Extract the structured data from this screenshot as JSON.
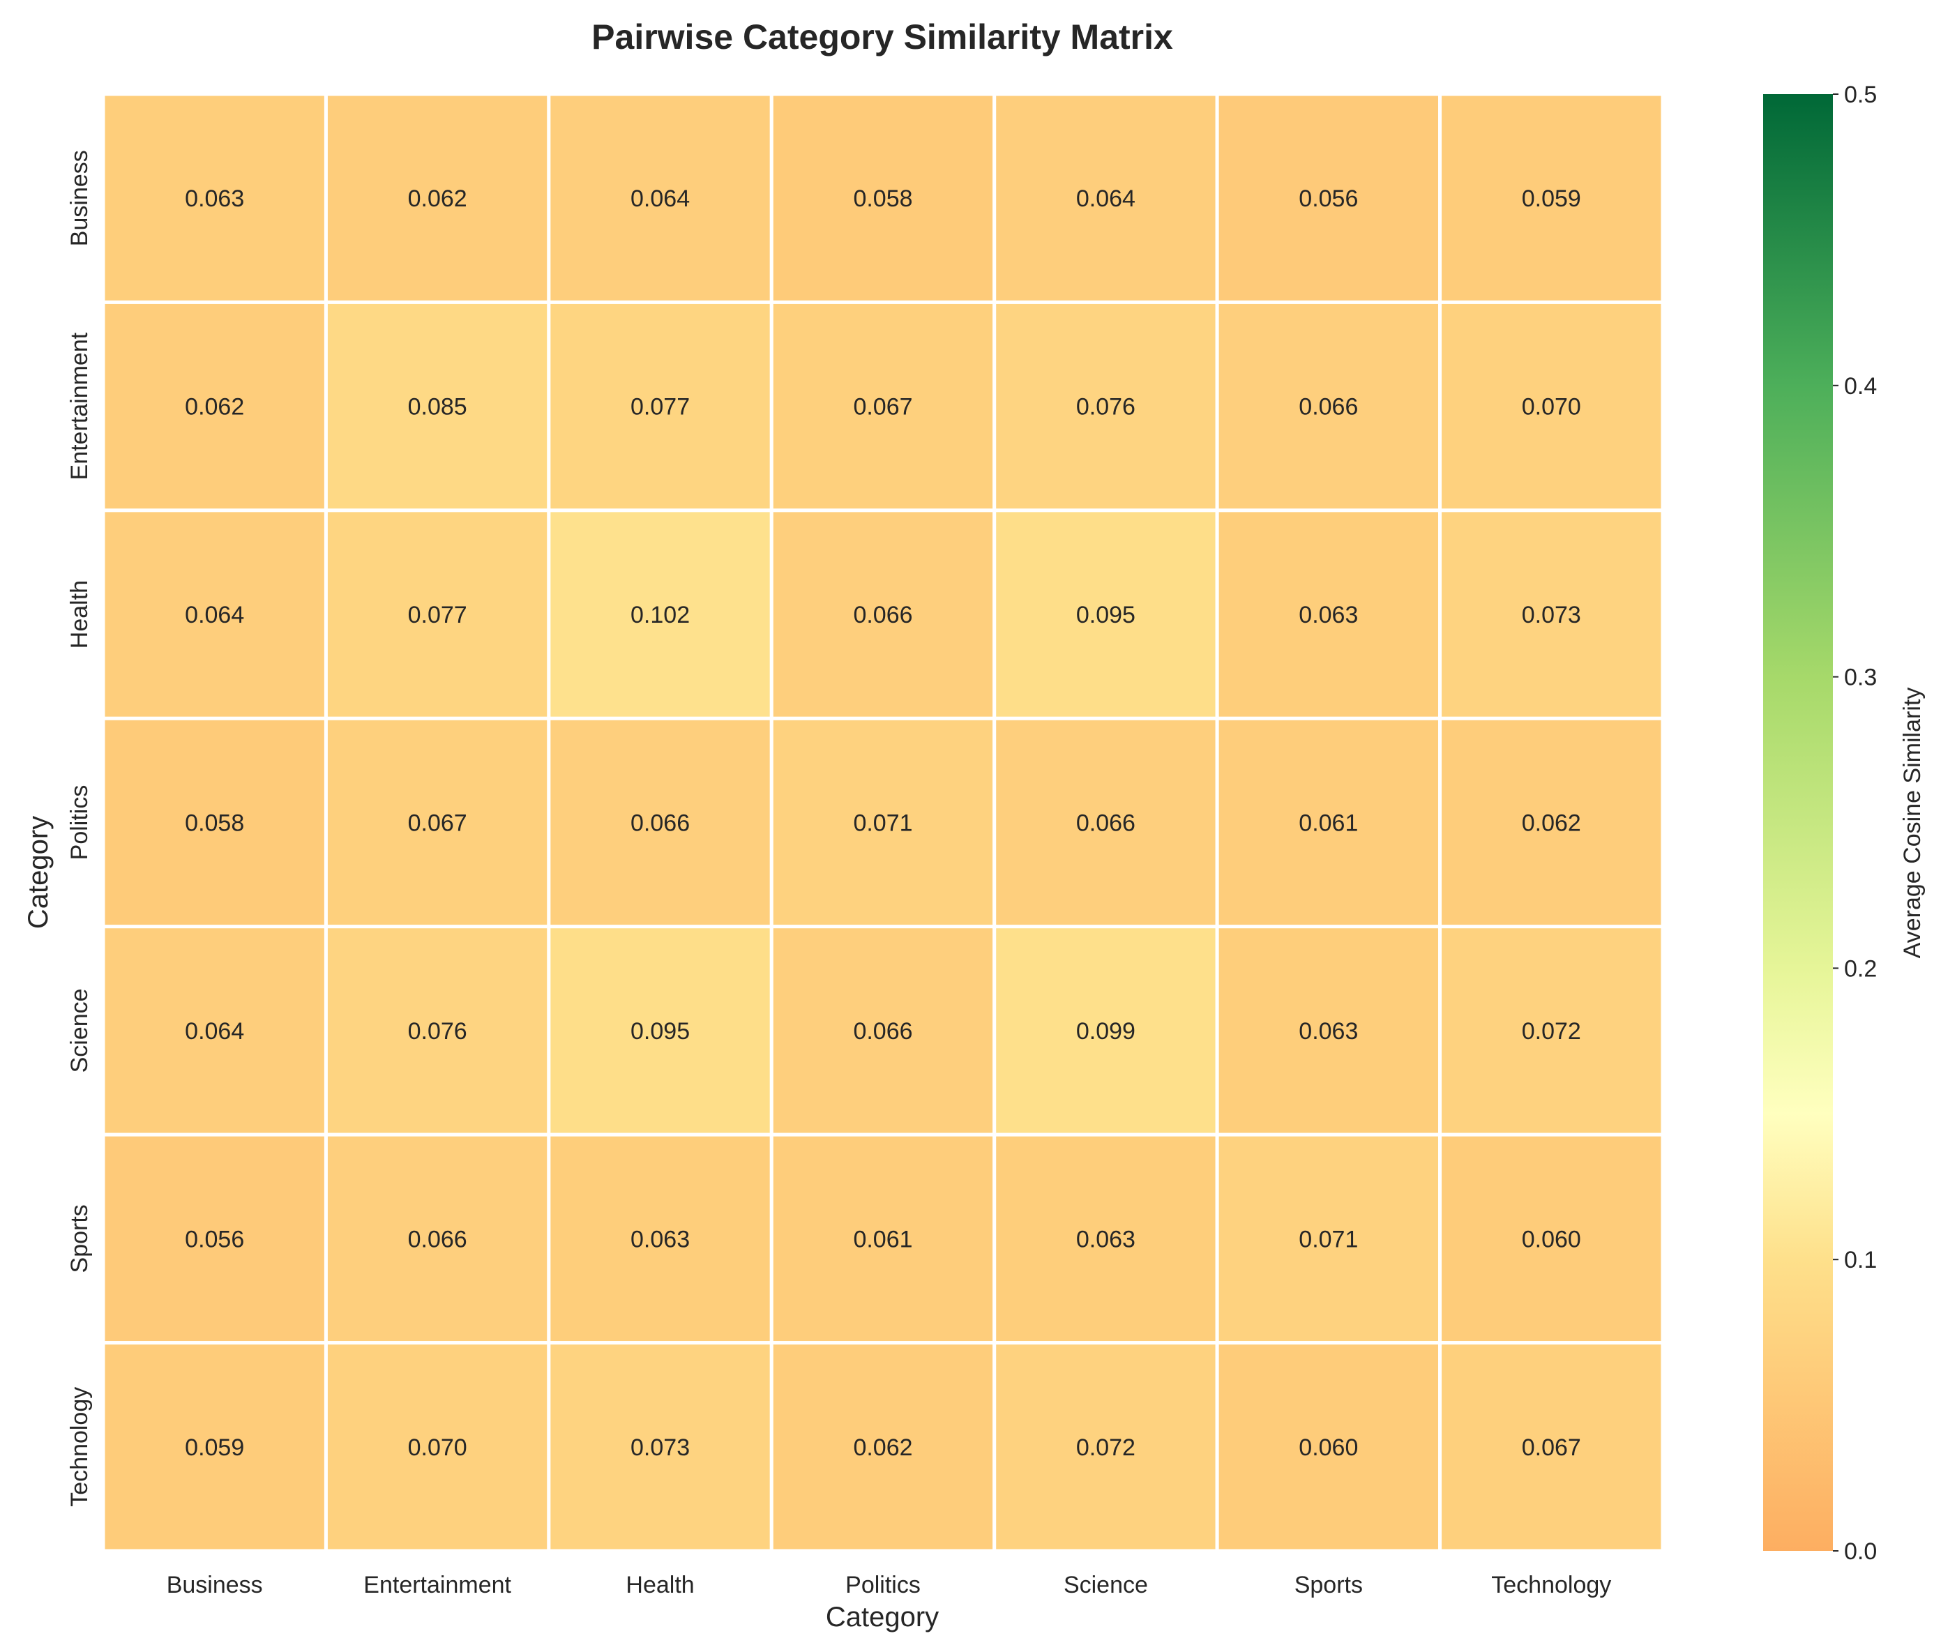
{
  "chart_data": {
    "type": "heatmap",
    "title": "Pairwise Category Similarity Matrix",
    "xlabel": "Category",
    "ylabel": "Category",
    "x_categories": [
      "Business",
      "Entertainment",
      "Health",
      "Politics",
      "Science",
      "Sports",
      "Technology"
    ],
    "y_categories": [
      "Business",
      "Entertainment",
      "Health",
      "Politics",
      "Science",
      "Sports",
      "Technology"
    ],
    "values": [
      [
        0.063,
        0.062,
        0.064,
        0.058,
        0.064,
        0.056,
        0.059
      ],
      [
        0.062,
        0.085,
        0.077,
        0.067,
        0.076,
        0.066,
        0.07
      ],
      [
        0.064,
        0.077,
        0.102,
        0.066,
        0.095,
        0.063,
        0.073
      ],
      [
        0.058,
        0.067,
        0.066,
        0.071,
        0.066,
        0.061,
        0.062
      ],
      [
        0.064,
        0.076,
        0.095,
        0.066,
        0.099,
        0.063,
        0.072
      ],
      [
        0.056,
        0.066,
        0.063,
        0.061,
        0.063,
        0.071,
        0.06
      ],
      [
        0.059,
        0.07,
        0.073,
        0.062,
        0.072,
        0.06,
        0.067
      ]
    ],
    "value_format_decimals": 3,
    "colorbar": {
      "label": "Average Cosine Similarity",
      "range": [
        0.0,
        0.5
      ],
      "ticks": [
        "0.0",
        "0.1",
        "0.2",
        "0.3",
        "0.4",
        "0.5"
      ],
      "colormap": "RdYlGn (shifted)",
      "stops": [
        {
          "value": 0.0,
          "color": "#fdae61"
        },
        {
          "value": 0.1,
          "color": "#fee08b"
        },
        {
          "value": 0.15,
          "color": "#ffffbf"
        },
        {
          "value": 0.2,
          "color": "#e6f598"
        },
        {
          "value": 0.3,
          "color": "#a6d96a"
        },
        {
          "value": 0.4,
          "color": "#4daf5a"
        },
        {
          "value": 0.5,
          "color": "#006837"
        }
      ]
    },
    "cell_separator_color": "#ffffff",
    "grid": false
  }
}
